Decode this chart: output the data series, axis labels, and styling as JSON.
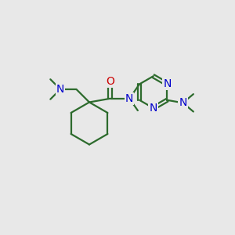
{
  "bg_color": "#e8e8e8",
  "bond_color": "#2d6b2d",
  "n_color": "#0000cc",
  "o_color": "#cc0000",
  "bond_width": 1.6,
  "font_size": 10,
  "figsize": [
    3.0,
    3.0
  ],
  "dpi": 100,
  "xlim": [
    0,
    10
  ],
  "ylim": [
    0,
    10
  ]
}
